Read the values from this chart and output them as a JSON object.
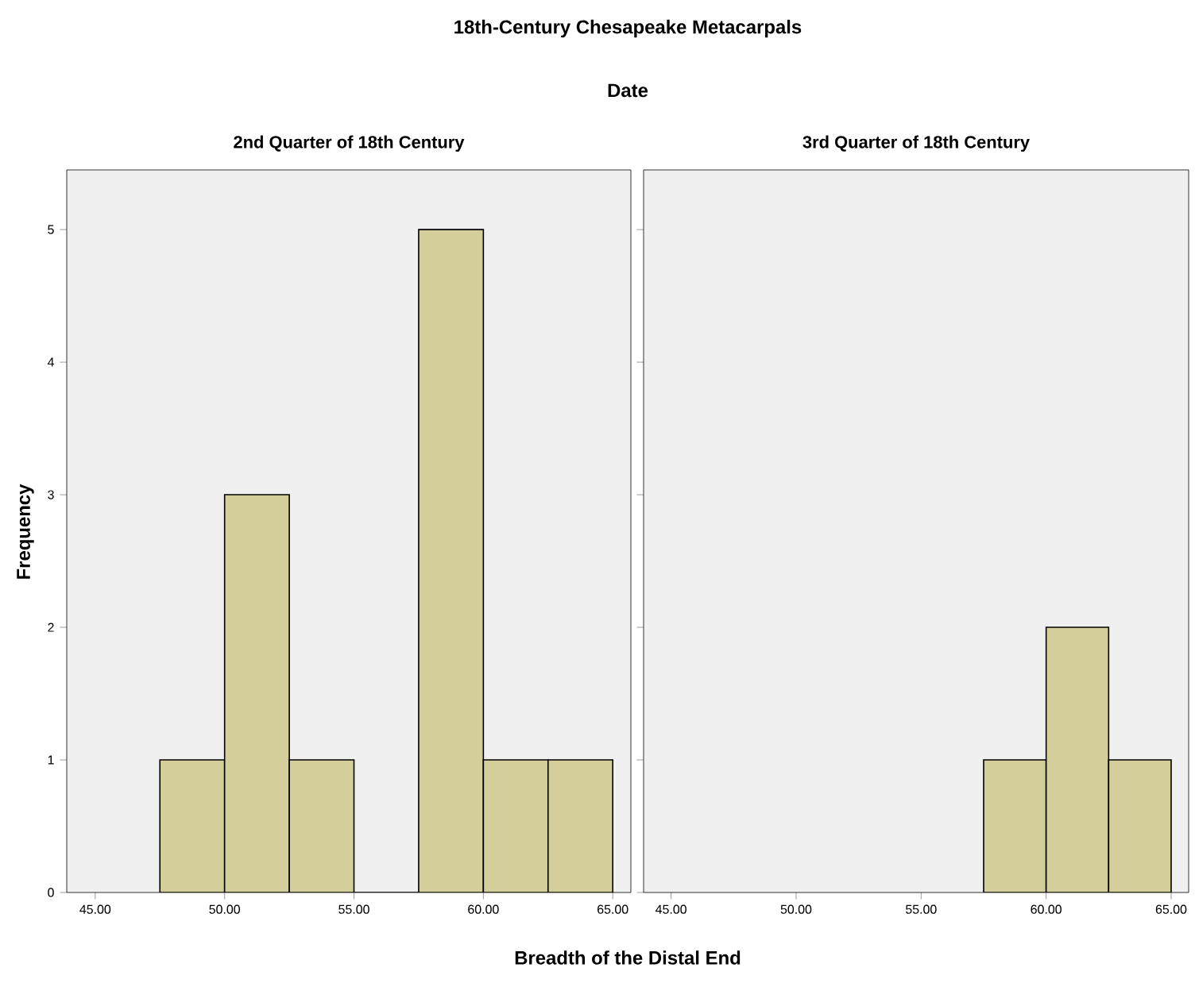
{
  "chart_data": [
    {
      "type": "histogram",
      "title": "2nd Quarter of 18th Century",
      "annotations": [
        "18th-Century Chesapeake Metacarpals",
        "Date"
      ],
      "xlabel": "Breadth of the Distal End",
      "ylabel": "Frequency",
      "bins": [
        47.5,
        50,
        52.5,
        55,
        57.5,
        60,
        62.5,
        65
      ],
      "values": [
        1,
        3,
        1,
        0,
        5,
        1,
        1
      ],
      "color": "#d4cf9a",
      "xlim": [
        43.9,
        65.7
      ],
      "ylim": [
        0,
        5.45
      ],
      "xticks": [
        {
          "value": 45,
          "label": "45.00"
        },
        {
          "value": 50,
          "label": "50.00"
        },
        {
          "value": 55,
          "label": "55.00"
        },
        {
          "value": 60,
          "label": "60.00"
        },
        {
          "value": 65,
          "label": "65.00"
        }
      ],
      "yticks": [
        0,
        1,
        2,
        3,
        4,
        5
      ],
      "grid": false
    },
    {
      "type": "histogram",
      "title": "3rd Quarter of 18th Century",
      "bins": [
        57.5,
        60,
        62.5,
        65
      ],
      "values": [
        1,
        2,
        1
      ],
      "color": "#d4cf9a",
      "xlim": [
        43.9,
        65.7
      ],
      "ylim": [
        0,
        5.45
      ],
      "xticks": [
        {
          "value": 45,
          "label": "45.00"
        },
        {
          "value": 50,
          "label": "50.00"
        },
        {
          "value": 55,
          "label": "55.00"
        },
        {
          "value": 60,
          "label": "60.00"
        },
        {
          "value": 65,
          "label": "65.00"
        }
      ],
      "yticks": [
        0,
        1,
        2,
        3,
        4,
        5
      ],
      "tick_labels": "x",
      "grid": false
    }
  ]
}
